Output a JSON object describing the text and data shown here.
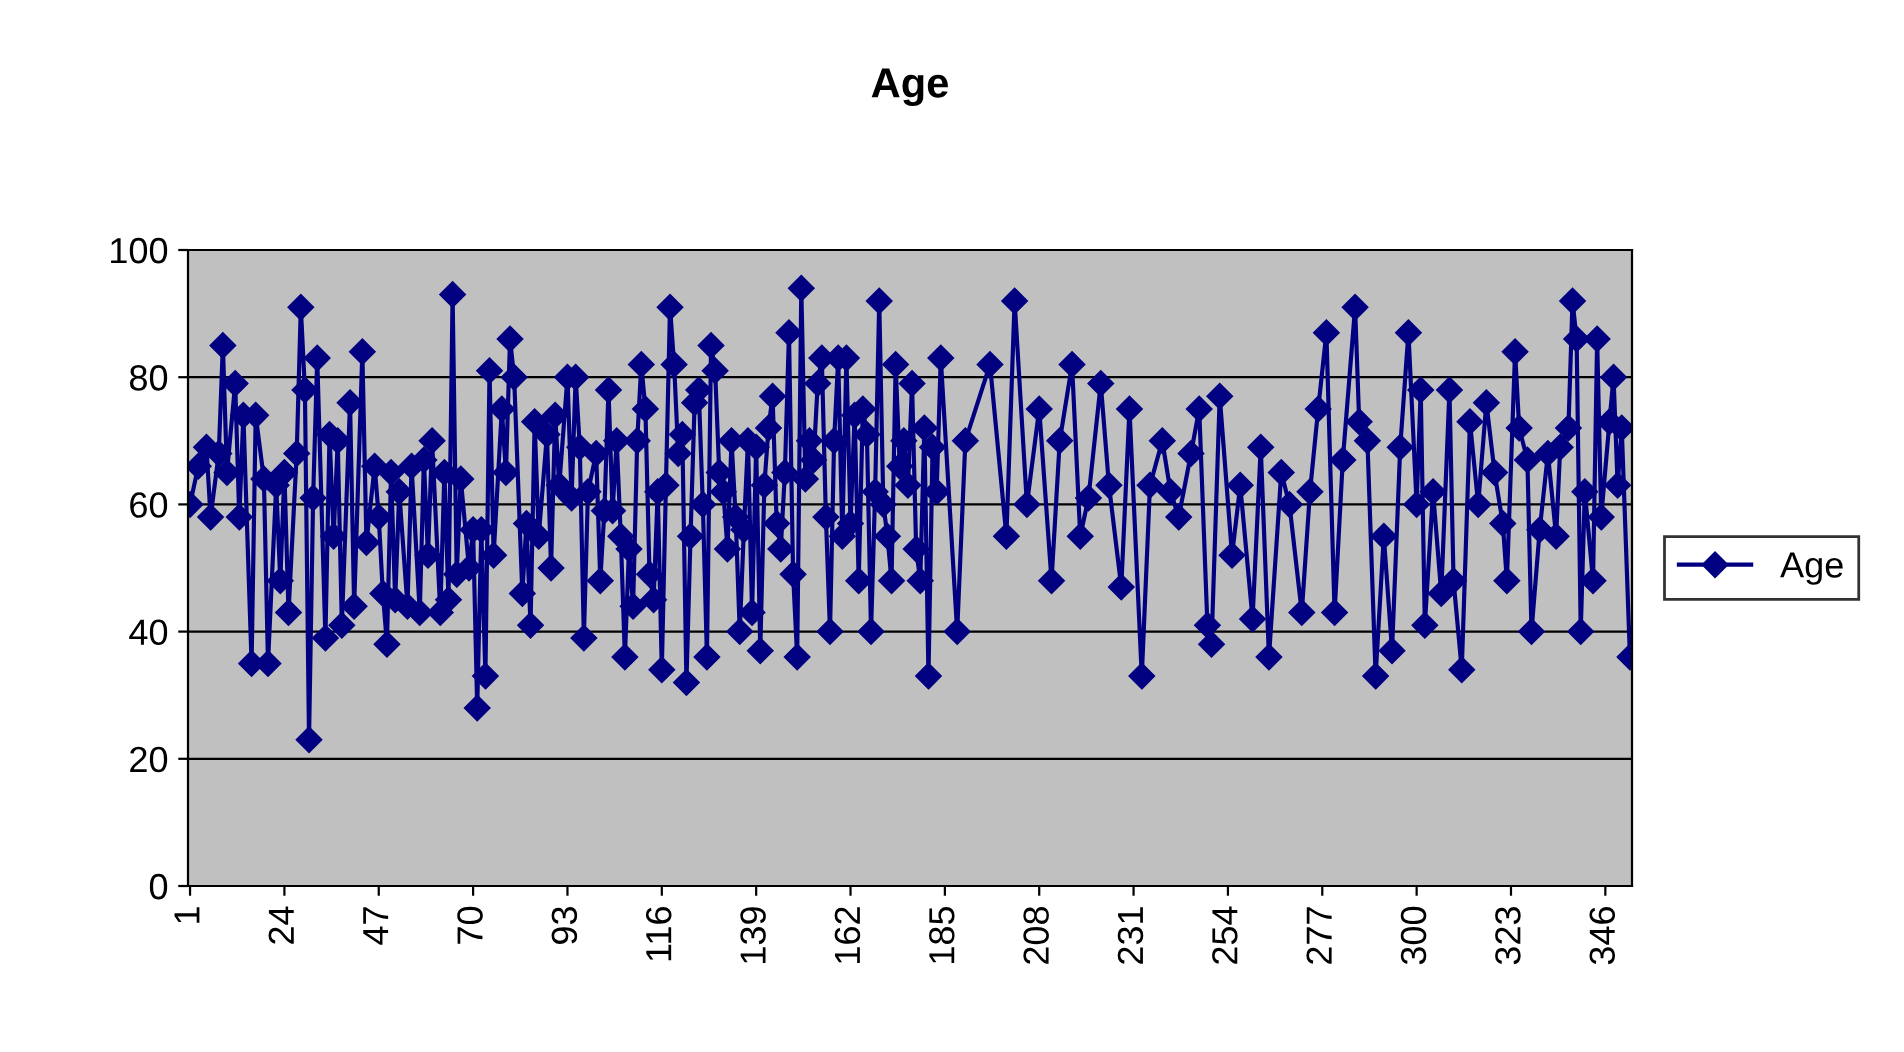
{
  "chart_data": {
    "type": "line",
    "title": "Age",
    "x": [
      1,
      3,
      5,
      6,
      8,
      9,
      10,
      12,
      13,
      14,
      16,
      17,
      19,
      20,
      22,
      23,
      24,
      25,
      27,
      28,
      29,
      30,
      31,
      32,
      34,
      35,
      36,
      37,
      38,
      40,
      41,
      43,
      44,
      46,
      47,
      48,
      49,
      50,
      51,
      52,
      54,
      55,
      57,
      58,
      59,
      60,
      62,
      63,
      64,
      65,
      66,
      67,
      69,
      70,
      71,
      72,
      73,
      74,
      75,
      77,
      78,
      79,
      80,
      82,
      83,
      84,
      85,
      86,
      88,
      89,
      90,
      91,
      93,
      94,
      95,
      96,
      97,
      98,
      100,
      101,
      102,
      103,
      104,
      105,
      106,
      107,
      108,
      109,
      110,
      111,
      112,
      113,
      114,
      115,
      116,
      117,
      118,
      119,
      120,
      121,
      122,
      123,
      124,
      125,
      126,
      127,
      128,
      129,
      130,
      131,
      132,
      133,
      134,
      135,
      136,
      137,
      138,
      139,
      140,
      141,
      142,
      143,
      144,
      145,
      146,
      147,
      148,
      149,
      150,
      151,
      152,
      153,
      154,
      155,
      156,
      157,
      158,
      159,
      160,
      161,
      162,
      163,
      164,
      165,
      166,
      167,
      168,
      169,
      170,
      171,
      172,
      173,
      174,
      175,
      176,
      177,
      178,
      179,
      180,
      181,
      182,
      183,
      184,
      188,
      190,
      196,
      200,
      202,
      205,
      208,
      211,
      213,
      216,
      218,
      220,
      223,
      225,
      228,
      230,
      233,
      235,
      238,
      240,
      242,
      245,
      247,
      249,
      250,
      252,
      255,
      257,
      260,
      262,
      264,
      267,
      269,
      272,
      274,
      276,
      278,
      280,
      282,
      285,
      286,
      288,
      290,
      292,
      294,
      296,
      298,
      300,
      301,
      302,
      304,
      306,
      308,
      309,
      311,
      313,
      315,
      317,
      319,
      321,
      322,
      324,
      325,
      327,
      328,
      330,
      332,
      334,
      335,
      337,
      338,
      339,
      340,
      341,
      343,
      344,
      345,
      347,
      348,
      349,
      350,
      352
    ],
    "series": [
      {
        "name": "Age",
        "color": "#000080",
        "values": [
          60,
          66,
          69,
          58,
          68,
          85,
          65,
          79,
          58,
          74,
          35,
          74,
          64,
          35,
          63,
          48,
          65,
          43,
          68,
          91,
          78,
          23,
          61,
          83,
          39,
          71,
          55,
          70,
          41,
          76,
          44,
          84,
          54,
          66,
          58,
          46,
          38,
          65,
          45,
          62,
          44,
          66,
          43,
          67,
          52,
          70,
          43,
          65,
          45,
          93,
          49,
          64,
          50,
          56,
          28,
          56,
          33,
          81,
          52,
          75,
          65,
          86,
          80,
          46,
          57,
          41,
          73,
          55,
          71,
          50,
          74,
          63,
          80,
          61,
          80,
          69,
          39,
          62,
          68,
          48,
          59,
          78,
          59,
          70,
          55,
          36,
          53,
          44,
          70,
          82,
          75,
          49,
          45,
          62,
          34,
          63,
          91,
          82,
          68,
          71,
          32,
          55,
          76,
          78,
          60,
          36,
          85,
          81,
          65,
          62,
          53,
          70,
          58,
          40,
          56,
          70,
          43,
          69,
          37,
          63,
          72,
          77,
          57,
          53,
          65,
          87,
          49,
          36,
          94,
          64,
          70,
          67,
          79,
          83,
          58,
          40,
          70,
          83,
          55,
          83,
          57,
          74,
          48,
          75,
          71,
          40,
          62,
          92,
          60,
          55,
          48,
          82,
          66,
          70,
          63,
          79,
          53,
          48,
          72,
          33,
          69,
          62,
          83,
          40,
          70,
          82,
          55,
          92,
          60,
          75,
          48,
          70,
          82,
          55,
          61,
          79,
          63,
          47,
          75,
          33,
          63,
          70,
          62,
          58,
          68,
          75,
          41,
          38,
          77,
          52,
          63,
          42,
          69,
          36,
          65,
          60,
          43,
          62,
          75,
          87,
          43,
          67,
          91,
          73,
          70,
          33,
          55,
          37,
          69,
          87,
          60,
          78,
          41,
          62,
          46,
          78,
          48,
          34,
          73,
          60,
          76,
          65,
          57,
          48,
          84,
          72,
          67,
          40,
          56,
          68,
          55,
          69,
          72,
          92,
          86,
          40,
          62,
          48,
          86,
          58,
          73,
          80,
          63,
          72,
          36
        ]
      }
    ],
    "xlim": [
      0.5,
      352.5
    ],
    "xticks": [
      1,
      24,
      47,
      70,
      93,
      116,
      139,
      162,
      185,
      208,
      231,
      254,
      277,
      300,
      323,
      346
    ],
    "ylim": [
      0,
      100
    ],
    "yticks": [
      0,
      20,
      40,
      60,
      80,
      100
    ],
    "grid": "y",
    "legend": "right",
    "marker": "diamond",
    "line_style": "solid"
  }
}
